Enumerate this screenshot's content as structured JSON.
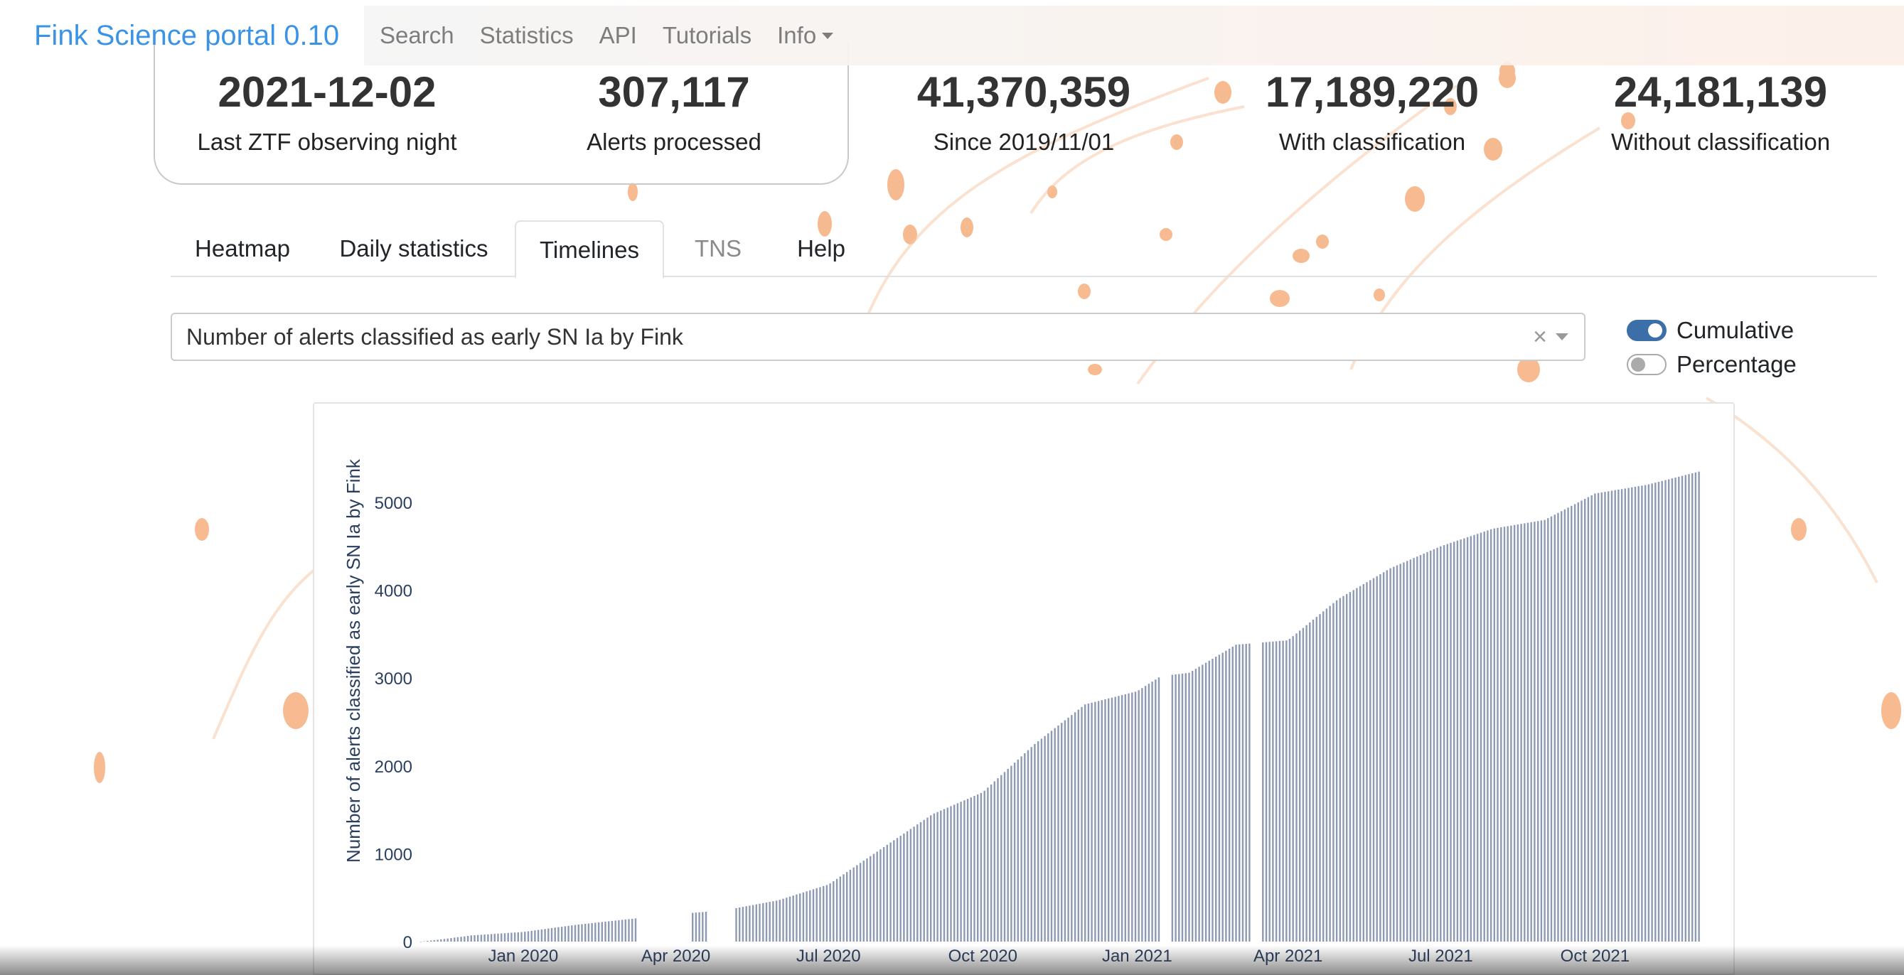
{
  "navbar": {
    "brand": "Fink Science portal 0.10",
    "items": [
      {
        "label": "Search"
      },
      {
        "label": "Statistics"
      },
      {
        "label": "API"
      },
      {
        "label": "Tutorials"
      },
      {
        "label": "Info"
      }
    ]
  },
  "stats": [
    {
      "value": "2021-12-02",
      "label": "Last ZTF observing night"
    },
    {
      "value": "307,117",
      "label": "Alerts processed"
    },
    {
      "value": "41,370,359",
      "label": "Since 2019/11/01"
    },
    {
      "value": "17,189,220",
      "label": "With classification"
    },
    {
      "value": "24,181,139",
      "label": "Without classification"
    }
  ],
  "tabs": [
    {
      "label": "Heatmap",
      "state": "normal"
    },
    {
      "label": "Daily statistics",
      "state": "normal"
    },
    {
      "label": "Timelines",
      "state": "active"
    },
    {
      "label": "TNS",
      "state": "disabled"
    },
    {
      "label": "Help",
      "state": "normal"
    }
  ],
  "dropdown": {
    "value": "Number of alerts classified as early SN Ia by Fink",
    "clear_icon": "close-icon",
    "arrow_icon": "chevron-down-icon"
  },
  "toggles": [
    {
      "label": "Cumulative",
      "on": true
    },
    {
      "label": "Percentage",
      "on": false
    }
  ],
  "colors": {
    "brand": "#3b93e6",
    "bar": "#8e9ab2",
    "toggle_on": "#3c6ea8",
    "decor": "#f4a36c"
  },
  "chart_data": {
    "type": "bar",
    "cumulative": true,
    "ylabel": "Number of alerts classified as early SN Ia by Fink",
    "xlabel": "",
    "y_ticks": [
      0,
      1000,
      2000,
      3000,
      4000,
      5000
    ],
    "ylim": [
      0,
      5800
    ],
    "x_ticks": [
      "Jan 2020",
      "Apr 2020",
      "Jul 2020",
      "Oct 2020",
      "Jan 2021",
      "Apr 2021",
      "Jul 2021",
      "Oct 2021"
    ],
    "xlim": [
      "2019-11-01",
      "2021-12-03"
    ],
    "grid": false,
    "legend": "none",
    "series_points": [
      [
        "2019-11-01",
        0
      ],
      [
        "2019-11-15",
        30
      ],
      [
        "2019-12-01",
        70
      ],
      [
        "2020-01-01",
        110
      ],
      [
        "2020-02-01",
        190
      ],
      [
        "2020-03-01",
        250
      ],
      [
        "2020-04-01",
        310
      ],
      [
        "2020-05-01",
        360
      ],
      [
        "2020-06-01",
        470
      ],
      [
        "2020-07-01",
        650
      ],
      [
        "2020-08-01",
        1050
      ],
      [
        "2020-09-01",
        1450
      ],
      [
        "2020-10-01",
        1700
      ],
      [
        "2020-11-01",
        2250
      ],
      [
        "2020-12-01",
        2700
      ],
      [
        "2021-01-01",
        2850
      ],
      [
        "2021-01-15",
        3020
      ],
      [
        "2021-02-01",
        3060
      ],
      [
        "2021-03-01",
        3380
      ],
      [
        "2021-04-01",
        3430
      ],
      [
        "2021-05-01",
        3900
      ],
      [
        "2021-06-01",
        4250
      ],
      [
        "2021-07-01",
        4500
      ],
      [
        "2021-08-01",
        4700
      ],
      [
        "2021-09-01",
        4800
      ],
      [
        "2021-10-01",
        5100
      ],
      [
        "2021-11-01",
        5200
      ],
      [
        "2021-12-02",
        5350
      ]
    ],
    "gaps": [
      [
        "2020-03-10",
        "2020-04-10"
      ],
      [
        "2020-04-20",
        "2020-05-05"
      ],
      [
        "2021-01-16",
        "2021-01-20"
      ],
      [
        "2021-03-10",
        "2021-03-15"
      ]
    ]
  }
}
